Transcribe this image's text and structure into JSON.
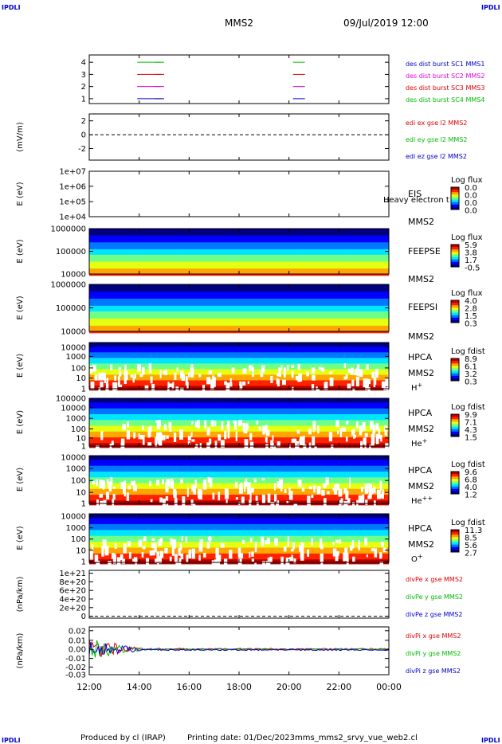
{
  "header": {
    "corner_label": "IPDLI",
    "spacecraft": "MMS2",
    "datetime": "09/Jul/2019 12:00"
  },
  "footer": {
    "produced_by": "Produced by cl (IRAP)",
    "printing_date": "Printing date: 01/Dec/2023",
    "filename": "mms_mms2_srvy_vue_web2.cl"
  },
  "chart_data": {
    "type": "heatmap",
    "x_ticks": [
      "12:00",
      "14:00",
      "16:00",
      "18:00",
      "20:00",
      "22:00",
      "00:00"
    ],
    "panels": [
      {
        "id": "burst",
        "ylabel": "",
        "yticks": [
          "4",
          "3",
          "2",
          "1"
        ],
        "legend": [
          {
            "text": "des dist burst SC1 MMS1",
            "color": "#0000cc"
          },
          {
            "text": "des dist burst SC2 MMS2",
            "color": "#dd00dd"
          },
          {
            "text": "des dist burst SC3 MMS3",
            "color": "#dd0000"
          },
          {
            "text": "des dist burst SC4 MMS4",
            "color": "#00bb00"
          }
        ]
      },
      {
        "id": "edi",
        "ylabel": "(mV/m)",
        "yticks": [
          "2",
          "0",
          "-2"
        ],
        "legend": [
          {
            "text": "edi ex gse l2 MMS2",
            "color": "#dd0000"
          },
          {
            "text": "edi ey gse l2 MMS2",
            "color": "#00bb00"
          },
          {
            "text": "edi ez gse l2 MMS2",
            "color": "#0000cc"
          }
        ]
      },
      {
        "id": "eis",
        "ylabel": "E (eV)",
        "yticks": [
          "1e+07",
          "1e+06",
          "1e+05",
          "1e+04"
        ],
        "instrument": [
          "EIS",
          "MMS2"
        ],
        "overlay_text": "Heavy electron t",
        "colorbar": {
          "title": "Log flux",
          "labels": [
            "0.0",
            "0.0",
            "0.0",
            "0.0"
          ]
        }
      },
      {
        "id": "feepse",
        "ylabel": "E (eV)",
        "yticks": [
          "1000000",
          "100000",
          "10000"
        ],
        "instrument": [
          "FEEPSE",
          "MMS2"
        ],
        "colorbar": {
          "title": "Log flux",
          "labels": [
            "5.9",
            "3.8",
            "1.7",
            "-0.5"
          ]
        }
      },
      {
        "id": "feepsi",
        "ylabel": "E (eV)",
        "yticks": [
          "1000000",
          "100000",
          "10000"
        ],
        "instrument": [
          "FEEPSI",
          "MMS2"
        ],
        "colorbar": {
          "title": "Log flux",
          "labels": [
            "4.0",
            "2.8",
            "1.5",
            "0.3"
          ]
        }
      },
      {
        "id": "hpca_h",
        "ylabel": "E (eV)",
        "yticks": [
          "10000",
          "1000",
          "100",
          "10",
          "1"
        ],
        "instrument": [
          "HPCA",
          "MMS2"
        ],
        "species": "H",
        "species_sup": "+",
        "colorbar": {
          "title": "Log fdist",
          "labels": [
            "8.9",
            "6.1",
            "3.2",
            "0.3"
          ]
        }
      },
      {
        "id": "hpca_he",
        "ylabel": "E (eV)",
        "yticks": [
          "100000",
          "10000",
          "1000",
          "100",
          "10",
          "1"
        ],
        "instrument": [
          "HPCA",
          "MMS2"
        ],
        "species": "He",
        "species_sup": "+",
        "colorbar": {
          "title": "Log fdist",
          "labels": [
            "9.9",
            "7.1",
            "4.3",
            "1.5"
          ]
        }
      },
      {
        "id": "hpca_hepp",
        "ylabel": "E (eV)",
        "yticks": [
          "10000",
          "1000",
          "100",
          "10",
          "1"
        ],
        "instrument": [
          "HPCA",
          "MMS2"
        ],
        "species": "He",
        "species_sup": "++",
        "colorbar": {
          "title": "Log fdist",
          "labels": [
            "9.6",
            "6.8",
            "4.0",
            "1.2"
          ]
        }
      },
      {
        "id": "hpca_o",
        "ylabel": "E (eV)",
        "yticks": [
          "10000",
          "1000",
          "100",
          "10",
          "1"
        ],
        "instrument": [
          "HPCA",
          "MMS2"
        ],
        "species": "O",
        "species_sup": "+",
        "colorbar": {
          "title": "Log fdist",
          "labels": [
            "11.3",
            "8.5",
            "5.6",
            "2.7"
          ]
        }
      },
      {
        "id": "divpe",
        "ylabel": "(nPa/km)",
        "yticks": [
          "1e+21",
          "8e+20",
          "6e+20",
          "4e+20",
          "2e+20",
          "0"
        ],
        "legend": [
          {
            "text": "divPe x gse MMS2",
            "color": "#dd0000"
          },
          {
            "text": "divPe y gse MMS2",
            "color": "#00bb00"
          },
          {
            "text": "divPe z gse MMS2",
            "color": "#0000cc"
          }
        ]
      },
      {
        "id": "divpi",
        "ylabel": "(nPa/km)",
        "yticks": [
          "0.02",
          "0.01",
          "0.00",
          "-0.01",
          "-0.02",
          "-0.03"
        ],
        "legend": [
          {
            "text": "divPi x gse MMS2",
            "color": "#dd0000"
          },
          {
            "text": "divPi y gse MMS2",
            "color": "#00bb00"
          },
          {
            "text": "divPi z gse MMS2",
            "color": "#0000cc"
          }
        ]
      }
    ]
  }
}
